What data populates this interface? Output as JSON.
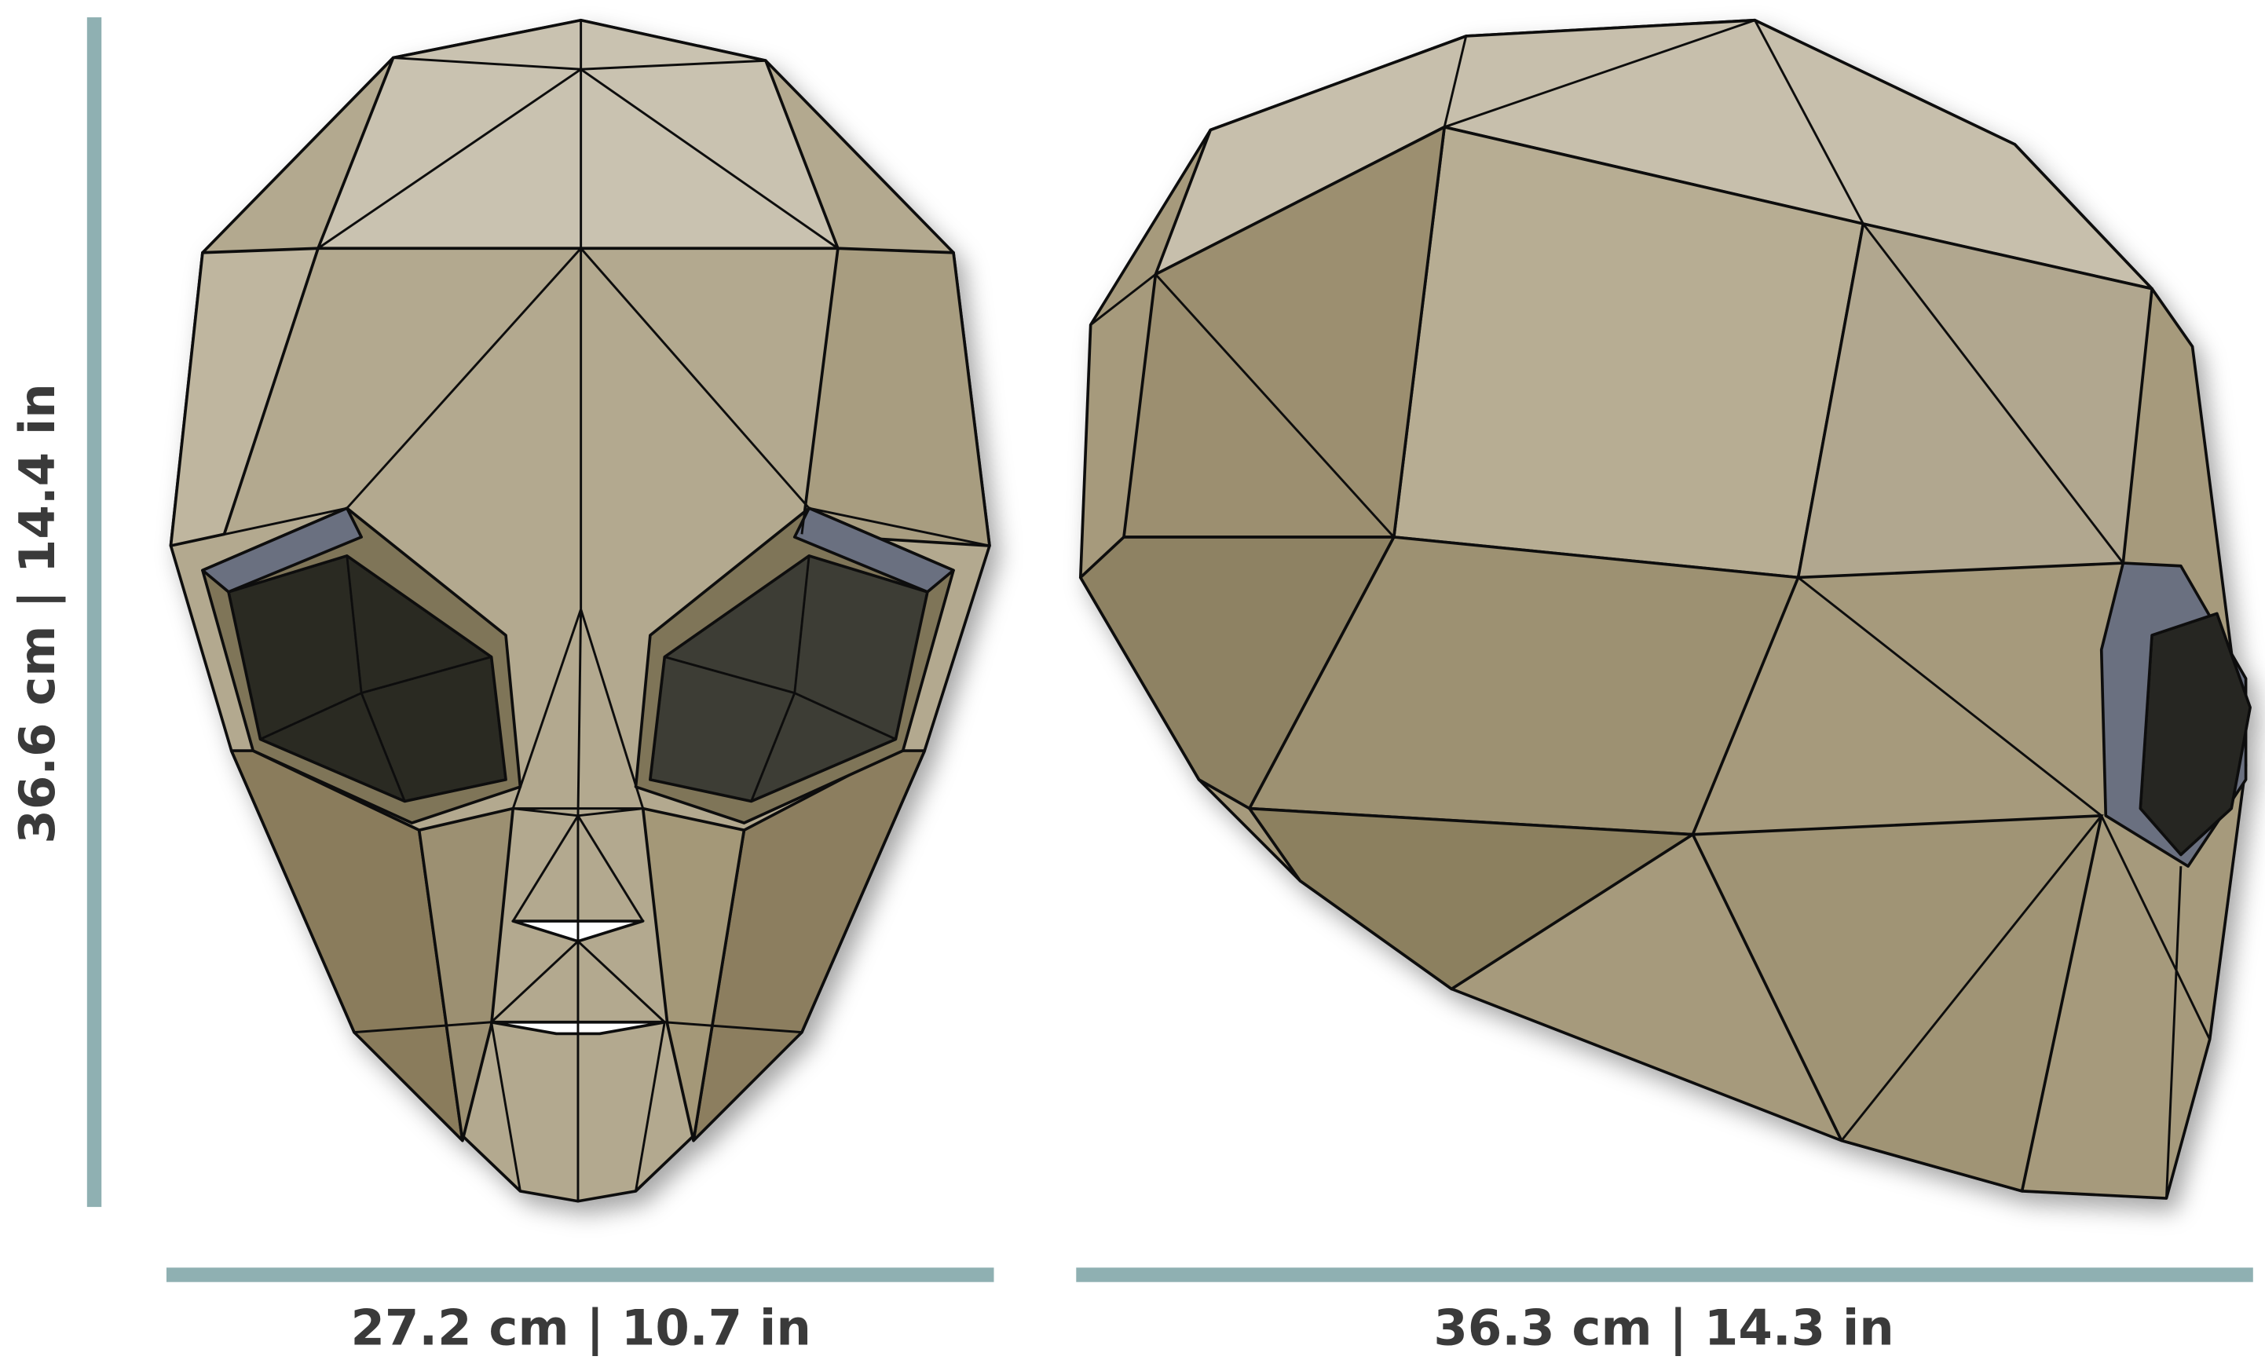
{
  "dimensions": {
    "height": "36.6 cm | 14.4 in",
    "front_width": "27.2 cm | 10.7 in",
    "side_width": "36.3 cm | 14.3 in"
  }
}
